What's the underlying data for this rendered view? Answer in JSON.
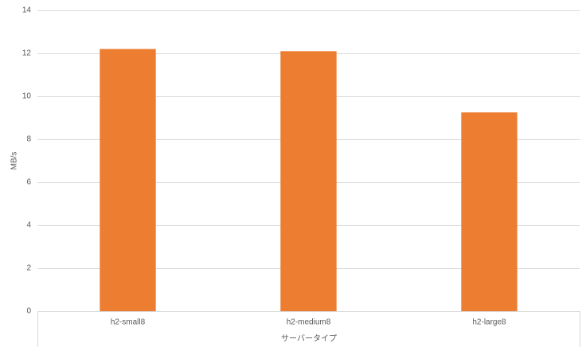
{
  "chart_data": {
    "type": "bar",
    "categories": [
      "h2-small8",
      "h2-medium8",
      "h2-large8"
    ],
    "values": [
      12.2,
      12.1,
      9.25
    ],
    "color": "#ed7d31",
    "ylabel": "MB/s",
    "xlabel": "サーバータイプ",
    "ylim": [
      0,
      14
    ],
    "yticks": [
      0,
      2,
      4,
      6,
      8,
      10,
      12,
      14
    ],
    "grid": true
  }
}
